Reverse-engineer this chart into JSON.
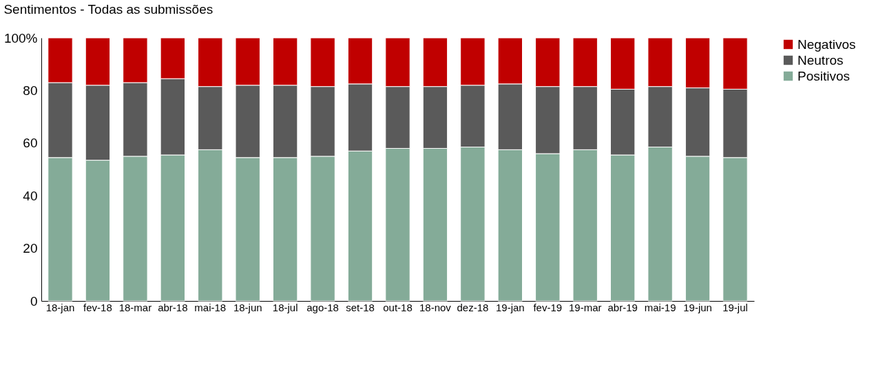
{
  "chart_data": {
    "type": "bar",
    "title": "Sentimentos - Todas as submissões",
    "stacked": true,
    "categories": [
      "18-jan",
      "fev-18",
      "18-mar",
      "abr-18",
      "mai-18",
      "18-jun",
      "18-jul",
      "ago-18",
      "set-18",
      "out-18",
      "18-nov",
      "dez-18",
      "19-jan",
      "fev-19",
      "19-mar",
      "abr-19",
      "mai-19",
      "19-jun",
      "19-jul"
    ],
    "series": [
      {
        "name": "Positivos",
        "color": "#84ab98",
        "values": [
          54.5,
          53.5,
          55,
          55.5,
          57.5,
          54.5,
          54.5,
          55,
          57,
          58,
          58,
          58.5,
          57.5,
          56,
          57.5,
          55.5,
          58.5,
          55,
          54.5
        ]
      },
      {
        "name": "Neutros",
        "color": "#5a5a5a",
        "values": [
          28.5,
          28.5,
          28,
          29,
          24,
          27.5,
          27.5,
          26.5,
          25.5,
          23.5,
          23.5,
          23.5,
          25,
          25.5,
          24,
          25,
          23,
          26,
          26
        ]
      },
      {
        "name": "Negativos",
        "color": "#c00000",
        "values": [
          17,
          18,
          17,
          15.5,
          18.5,
          18,
          18,
          18.5,
          17.5,
          18.5,
          18.5,
          18,
          17.5,
          18.5,
          18.5,
          19.5,
          18.5,
          19,
          19.5
        ]
      }
    ],
    "ylim": [
      0,
      100
    ],
    "yticks": [
      0,
      20,
      40,
      60,
      80,
      {
        "value": 100,
        "label": "100%"
      }
    ],
    "grid": false,
    "legend": "right"
  }
}
